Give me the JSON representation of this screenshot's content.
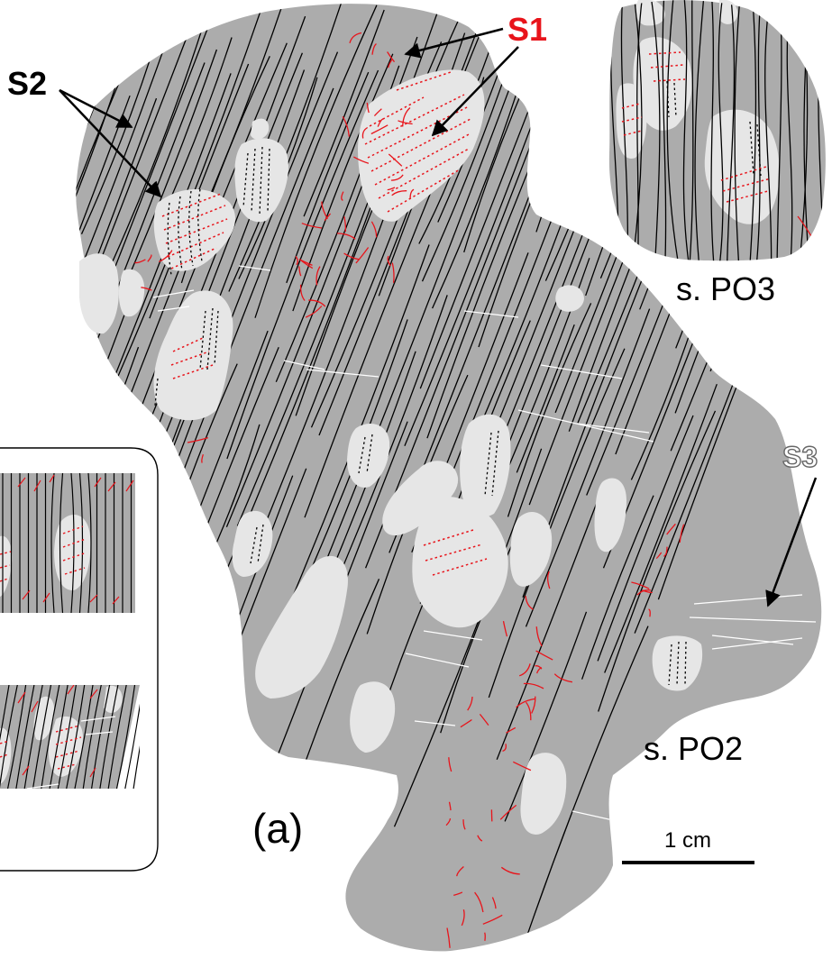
{
  "labels": {
    "s1": "S1",
    "s2": "S2",
    "s3": "S3",
    "sample_po3": "s. PO3",
    "sample_po2": "s. PO2",
    "panel": "(a)",
    "scale": "1 cm"
  },
  "colors": {
    "matrix": "#acacac",
    "clast": "#e6e6e6",
    "s1": "#e8141b",
    "s2": "#000000",
    "s3": "#ffffff",
    "s3_outline": "#666666"
  }
}
